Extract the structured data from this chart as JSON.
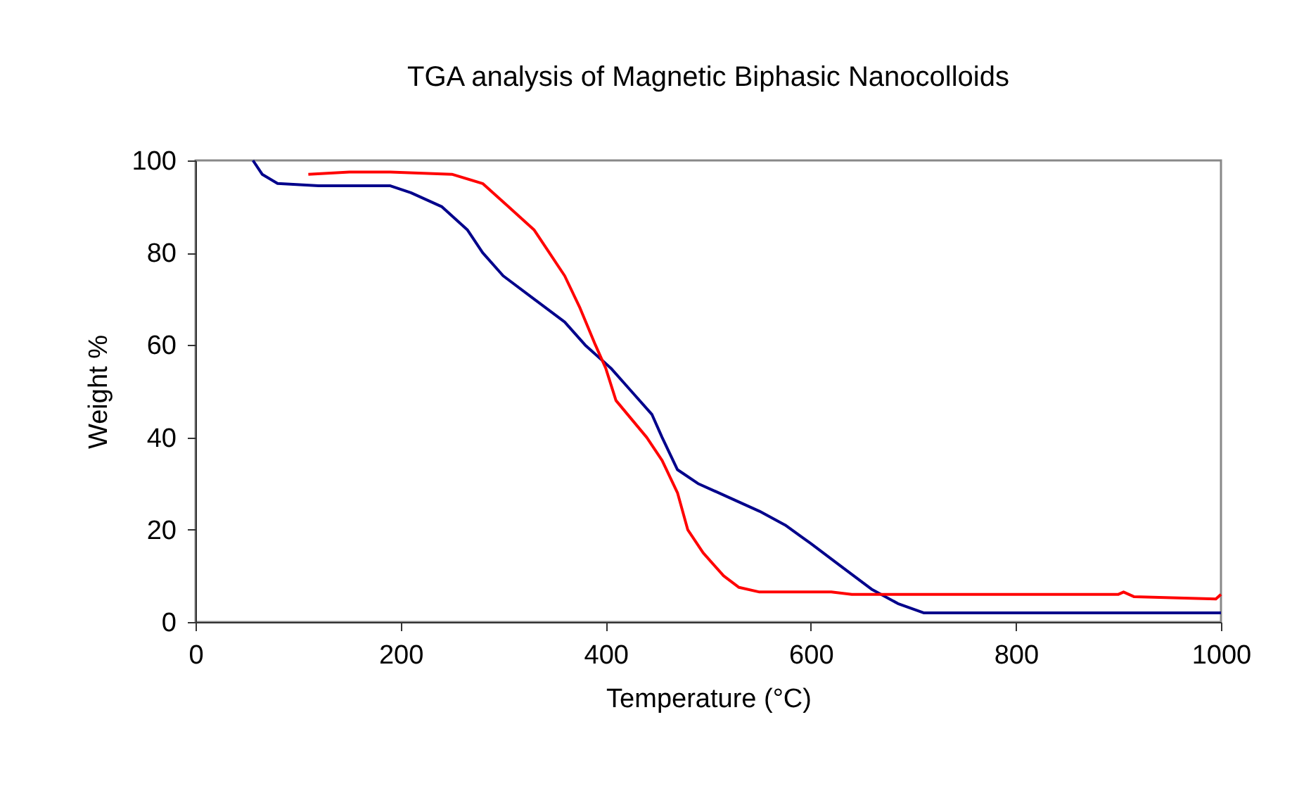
{
  "chart_data": {
    "type": "line",
    "title": "TGA analysis of Magnetic Biphasic Nanocolloids",
    "xlabel": "Temperature (°C)",
    "ylabel": "Weight %",
    "xlim": [
      0,
      1000
    ],
    "xticks": [
      0,
      200,
      400,
      600,
      800,
      1000
    ],
    "ylim": [
      0,
      100
    ],
    "yticks": [
      0,
      20,
      40,
      60,
      80,
      100
    ],
    "grid": false,
    "legend": false,
    "marker": "none",
    "line_style": "solid",
    "series": [
      {
        "color": "#00008b",
        "x": [
          56,
          65,
          80,
          120,
          190,
          210,
          240,
          265,
          280,
          300,
          330,
          360,
          380,
          405,
          425,
          445,
          455,
          470,
          490,
          520,
          550,
          575,
          600,
          630,
          660,
          685,
          710,
          800,
          1000
        ],
        "values": [
          100,
          97,
          95,
          94.5,
          94.5,
          93,
          90,
          85,
          80,
          75,
          70,
          65,
          60,
          55,
          50,
          45,
          40,
          33,
          30,
          27,
          24,
          21,
          17,
          12,
          7,
          4,
          2,
          2,
          2
        ]
      },
      {
        "color": "#ff0000",
        "x": [
          110,
          150,
          190,
          250,
          280,
          305,
          330,
          345,
          360,
          375,
          390,
          400,
          410,
          425,
          440,
          455,
          470,
          480,
          495,
          515,
          530,
          550,
          620,
          640,
          900,
          905,
          915,
          995,
          1000
        ],
        "values": [
          97,
          97.5,
          97.5,
          97,
          95,
          90,
          85,
          80,
          75,
          68,
          60,
          55,
          48,
          44,
          40,
          35,
          28,
          20,
          15,
          10,
          7.5,
          6.5,
          6.5,
          6,
          6,
          6.5,
          5.5,
          5,
          6
        ]
      }
    ]
  }
}
